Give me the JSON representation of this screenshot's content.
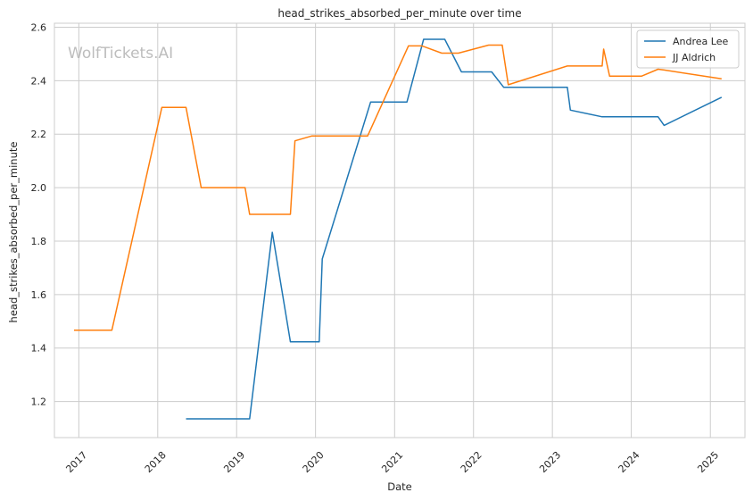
{
  "chart_data": {
    "type": "line",
    "title": "head_strikes_absorbed_per_minute over time",
    "xlabel": "Date",
    "ylabel": "head_strikes_absorbed_per_minute",
    "watermark": "WolfTickets.AI",
    "xlim": [
      "2016-09-10",
      "2025-06-10"
    ],
    "ylim": [
      1.065,
      2.615
    ],
    "x_ticks": [
      "2017-01-01",
      "2018-01-01",
      "2019-01-01",
      "2020-01-01",
      "2021-01-01",
      "2022-01-01",
      "2023-01-01",
      "2024-01-01",
      "2025-01-01"
    ],
    "x_tick_labels": [
      "2017",
      "2018",
      "2019",
      "2020",
      "2021",
      "2022",
      "2023",
      "2024",
      "2025"
    ],
    "y_ticks": [
      1.2,
      1.4,
      1.6,
      1.8,
      2.0,
      2.2,
      2.4,
      2.6
    ],
    "y_tick_labels": [
      "1.2",
      "1.4",
      "1.6",
      "1.8",
      "2.0",
      "2.2",
      "2.4",
      "2.6"
    ],
    "grid": true,
    "legend_position": "top-right",
    "series": [
      {
        "name": "Andrea Lee",
        "color": "#1f77b4",
        "points": [
          {
            "x": "2018-05-12",
            "y": 1.135
          },
          {
            "x": "2019-03-02",
            "y": 1.135
          },
          {
            "x": "2019-06-15",
            "y": 1.833
          },
          {
            "x": "2019-09-07",
            "y": 1.423
          },
          {
            "x": "2020-01-18",
            "y": 1.423
          },
          {
            "x": "2020-02-01",
            "y": 1.733
          },
          {
            "x": "2020-09-12",
            "y": 2.32
          },
          {
            "x": "2021-02-27",
            "y": 2.32
          },
          {
            "x": "2021-05-15",
            "y": 2.555
          },
          {
            "x": "2021-08-21",
            "y": 2.555
          },
          {
            "x": "2021-11-06",
            "y": 2.433
          },
          {
            "x": "2022-03-26",
            "y": 2.433
          },
          {
            "x": "2022-05-21",
            "y": 2.375
          },
          {
            "x": "2023-03-11",
            "y": 2.375
          },
          {
            "x": "2023-03-25",
            "y": 2.29
          },
          {
            "x": "2023-08-19",
            "y": 2.265
          },
          {
            "x": "2024-05-04",
            "y": 2.265
          },
          {
            "x": "2024-06-01",
            "y": 2.233
          },
          {
            "x": "2025-02-22",
            "y": 2.338
          }
        ]
      },
      {
        "name": "JJ Aldrich",
        "color": "#ff7f0e",
        "points": [
          {
            "x": "2016-12-10",
            "y": 1.467
          },
          {
            "x": "2017-06-03",
            "y": 1.467
          },
          {
            "x": "2018-01-20",
            "y": 2.3
          },
          {
            "x": "2018-05-12",
            "y": 2.3
          },
          {
            "x": "2018-07-21",
            "y": 2.0
          },
          {
            "x": "2019-02-09",
            "y": 2.0
          },
          {
            "x": "2019-03-02",
            "y": 1.9
          },
          {
            "x": "2019-09-07",
            "y": 1.9
          },
          {
            "x": "2019-09-28",
            "y": 2.175
          },
          {
            "x": "2019-12-14",
            "y": 2.193
          },
          {
            "x": "2020-08-29",
            "y": 2.193
          },
          {
            "x": "2021-03-06",
            "y": 2.53
          },
          {
            "x": "2021-05-08",
            "y": 2.53
          },
          {
            "x": "2021-08-07",
            "y": 2.503
          },
          {
            "x": "2021-10-23",
            "y": 2.503
          },
          {
            "x": "2022-03-12",
            "y": 2.533
          },
          {
            "x": "2022-05-14",
            "y": 2.533
          },
          {
            "x": "2022-06-11",
            "y": 2.385
          },
          {
            "x": "2023-03-11",
            "y": 2.455
          },
          {
            "x": "2023-08-19",
            "y": 2.455
          },
          {
            "x": "2023-08-26",
            "y": 2.518
          },
          {
            "x": "2023-09-23",
            "y": 2.417
          },
          {
            "x": "2024-02-17",
            "y": 2.417
          },
          {
            "x": "2024-05-04",
            "y": 2.443
          },
          {
            "x": "2024-06-01",
            "y": 2.44
          },
          {
            "x": "2025-02-22",
            "y": 2.407
          }
        ]
      }
    ]
  }
}
